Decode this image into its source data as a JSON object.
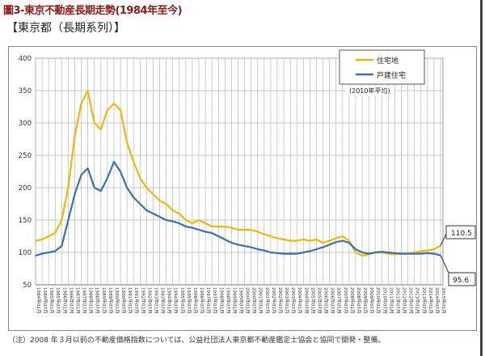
{
  "title": "圖3-東京不動産長期走勢(1984年至今)",
  "subtitle": "【東京都（長期系列）】",
  "note": "（注）2008 年３月以前の不動産価格指数については、公益社団法人東京都不動産鑑定士協会と協同で開発・整備。",
  "chart_data": {
    "type": "line",
    "ylim": [
      50,
      400
    ],
    "yticks": [
      50,
      100,
      150,
      200,
      250,
      300,
      350,
      400
    ],
    "grid": true,
    "legend_position": "top-right",
    "annotation": "(2010年平均)",
    "end_labels": [
      "110.5",
      "95.6"
    ],
    "x": [
      1984.0,
      1984.5,
      1985.0,
      1985.5,
      1986.0,
      1986.5,
      1987.0,
      1987.5,
      1988.0,
      1988.5,
      1989.0,
      1989.5,
      1990.0,
      1990.5,
      1991.0,
      1991.5,
      1992.0,
      1992.5,
      1993.0,
      1993.5,
      1994.0,
      1994.5,
      1995.0,
      1995.5,
      1996.0,
      1996.5,
      1997.0,
      1997.5,
      1998.0,
      1998.5,
      1999.0,
      1999.5,
      2000.0,
      2000.5,
      2001.0,
      2001.5,
      2002.0,
      2002.5,
      2003.0,
      2003.5,
      2004.0,
      2004.5,
      2005.0,
      2005.5,
      2006.0,
      2006.5,
      2007.0,
      2007.5,
      2008.0,
      2008.5,
      2009.0,
      2009.5,
      2010.0,
      2010.5,
      2011.0,
      2011.5,
      2012.0,
      2012.5,
      2013.0,
      2013.5,
      2014.0,
      2014.5,
      2015.0
    ],
    "xtick_labels": [
      "1984年01月",
      "1984年07月",
      "1985年01月",
      "1985年07月",
      "1986年01月",
      "1986年07月",
      "1987年01月",
      "1987年07月",
      "1988年01月",
      "1988年07月",
      "1989年01月",
      "1989年07月",
      "1990年01月",
      "1990年07月",
      "1991年01月",
      "1991年07月",
      "1992年01月",
      "1992年07月",
      "1993年01月",
      "1993年07月",
      "1994年01月",
      "1994年07月",
      "1995年01月",
      "1995年07月",
      "1996年01月",
      "1996年07月",
      "1997年01月",
      "1997年07月",
      "1998年01月",
      "1998年07月",
      "1999年01月",
      "1999年07月",
      "2000年01月",
      "2000年07月",
      "2001年01月",
      "2001年07月",
      "2002年01月",
      "2002年07月",
      "2003年01月",
      "2003年07月",
      "2004年01月",
      "2004年07月",
      "2005年01月",
      "2005年07月",
      "2006年01月",
      "2006年07月",
      "2007年01月",
      "2007年07月",
      "2008年01月",
      "2008年07月",
      "2009年01月",
      "2009年07月",
      "2010年01月",
      "2010年07月",
      "2011年01月",
      "2011年07月",
      "2012年01月",
      "2012年07月",
      "2013年01月",
      "2013年07月",
      "2014年01月",
      "2014年07月",
      "2015年01月"
    ],
    "series": [
      {
        "name": "住宅地",
        "color": "#f2b705",
        "values": [
          118,
          120,
          125,
          130,
          150,
          200,
          280,
          330,
          350,
          300,
          290,
          320,
          330,
          320,
          270,
          240,
          215,
          200,
          190,
          180,
          175,
          165,
          160,
          150,
          145,
          150,
          145,
          140,
          140,
          140,
          138,
          135,
          135,
          135,
          132,
          128,
          125,
          122,
          120,
          118,
          118,
          120,
          118,
          120,
          115,
          118,
          122,
          125,
          118,
          100,
          95,
          97,
          100,
          100,
          98,
          97,
          98,
          98,
          100,
          102,
          103,
          105,
          110.5
        ]
      },
      {
        "name": "戸建住宅",
        "color": "#3e6fb0",
        "values": [
          95,
          98,
          100,
          102,
          110,
          150,
          190,
          220,
          230,
          200,
          195,
          215,
          240,
          225,
          200,
          185,
          175,
          165,
          160,
          155,
          150,
          148,
          145,
          140,
          138,
          135,
          132,
          130,
          125,
          120,
          115,
          112,
          110,
          108,
          105,
          103,
          100,
          99,
          98,
          98,
          98,
          100,
          102,
          105,
          108,
          112,
          116,
          118,
          115,
          105,
          100,
          98,
          100,
          101,
          100,
          99,
          98,
          98,
          98,
          98,
          99,
          98,
          95.6
        ]
      }
    ]
  }
}
